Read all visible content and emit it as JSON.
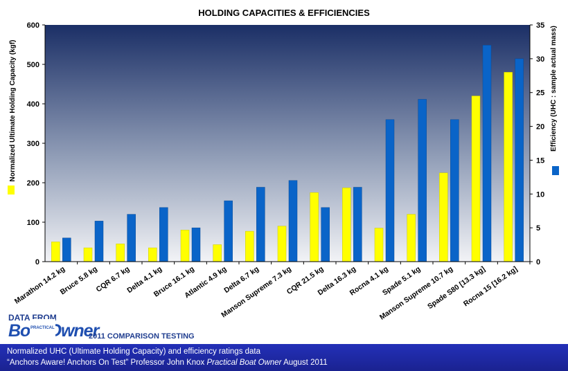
{
  "chart_data": {
    "type": "bar",
    "title": "HOLDING CAPACITIES & EFFICIENCIES",
    "categories": [
      "Marathon 14.2 kg",
      "Bruce 5.8 kg",
      "CQR 6.7 kg",
      "Delta 4.1 kg",
      "Bruce 16.1 kg",
      "Atlantic 4.9 kg",
      "Delta 6.7 kg",
      "Manson Supreme 7.3 kg",
      "CQR 21.5 kg",
      "Delta 16.3 kg",
      "Rocna 4.1 kg",
      "Spade 5.1 kg",
      "Manson Supreme 10.7 kg",
      "Spade S80 [13.3 kg]",
      "Rocna 15 [16.2 kg]"
    ],
    "series": [
      {
        "axis": "left",
        "color": "#ffff00",
        "values": [
          50,
          35,
          45,
          35,
          80,
          43,
          77,
          90,
          175,
          187,
          85,
          120,
          225,
          420,
          480
        ]
      },
      {
        "axis": "right",
        "color": "#0a64c8",
        "values": [
          3.5,
          6,
          7,
          8,
          5,
          9,
          11,
          12,
          8,
          11,
          21,
          24,
          21,
          32,
          30
        ]
      }
    ],
    "ylabel": "Normalized Ultimate Holding Capacity (kgf)",
    "y2label": "Efficiency (UHC : sample actual mass)",
    "ylim": [
      0,
      600
    ],
    "y2lim": [
      0,
      35
    ],
    "yticks": [
      0,
      100,
      200,
      300,
      400,
      500,
      600
    ],
    "y2ticks": [
      0,
      5,
      10,
      15,
      20,
      25,
      30,
      35
    ],
    "grid": false,
    "legend": "beside-axes"
  },
  "credit": {
    "data_from": "DATA FROM",
    "magazine_small": "PRACTICAL",
    "magazine": "Boat Owner",
    "testing": "2011 COMPARISON TESTING"
  },
  "footer": {
    "line1": "Normalized UHC (Ultimate Holding Capacity) and efficiency ratings data",
    "line2_a": "“Anchors Aware! Anchors On Test” Professor John Knox ",
    "line2_b": "Practical Boat Owner",
    "line2_c": " August 2011"
  }
}
